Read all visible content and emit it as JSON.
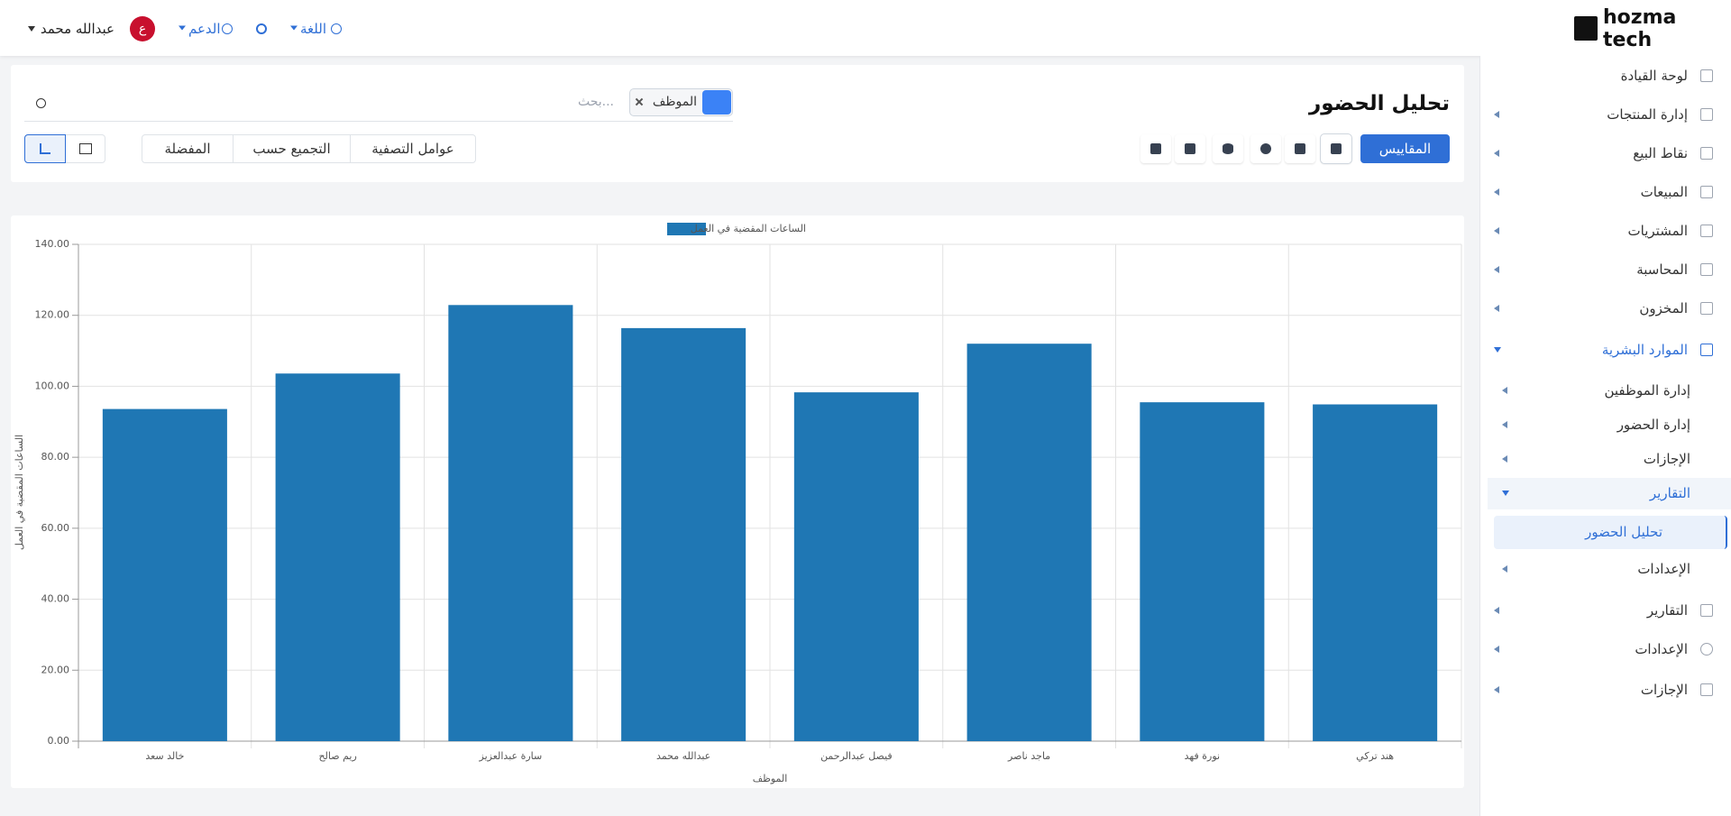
{
  "header": {
    "brand": "hozma tech",
    "user_name": "عبدالله محمد",
    "user_initial": "ع",
    "support": "الدعم",
    "language": "اللغة"
  },
  "sidebar": {
    "items": [
      "لوحة القيادة",
      "إدارة المنتجات",
      "نقاط البيع",
      "المبيعات",
      "المشتريات",
      "المحاسبة",
      "المخزون",
      "الموارد البشرية"
    ],
    "hr_items": [
      "إدارة الموظفين",
      "إدارة الحضور",
      "الإجازات",
      "التقارير",
      "الإعدادات"
    ],
    "report_items": [
      "تحليل الحضور"
    ],
    "bottom_items": [
      "التقارير",
      "الإعدادات",
      "الإجازات"
    ]
  },
  "page": {
    "title": "تحليل الحضور",
    "search_placeholder": "بحث...",
    "facet": "الموظف",
    "measures": "المقاييس",
    "filters": "عوامل التصفية",
    "group_by": "التجميع حسب",
    "favorites": "المفضلة"
  },
  "chart_data": {
    "type": "bar",
    "x_label": "الموظف",
    "y_label": "الساعات المقضية في العمل",
    "categories": [
      "خالد سعد",
      "ريم صالح",
      "سارة عبدالعزيز",
      "عبدالله محمد",
      "فيصل عبدالرحمن",
      "ماجد ناصر",
      "نورة فهد",
      "هند تركي"
    ],
    "series": [
      {
        "name": "الساعات المقضية في العمل",
        "color": "#1f77b4",
        "values": [
          93.6,
          103.6,
          122.9,
          116.4,
          98.3,
          112.0,
          95.5,
          94.9
        ]
      }
    ],
    "ylim": [
      0,
      140
    ],
    "yticks": [
      {
        "value": 0,
        "label": "0.00"
      },
      {
        "value": 20,
        "label": "20.00"
      },
      {
        "value": 40,
        "label": "40.00"
      },
      {
        "value": 60,
        "label": "60.00"
      },
      {
        "value": 80,
        "label": "80.00"
      },
      {
        "value": 100,
        "label": "100.00"
      },
      {
        "value": 120,
        "label": "120.00"
      },
      {
        "value": 140,
        "label": "140.00"
      }
    ],
    "grid": true,
    "legend": "top"
  }
}
